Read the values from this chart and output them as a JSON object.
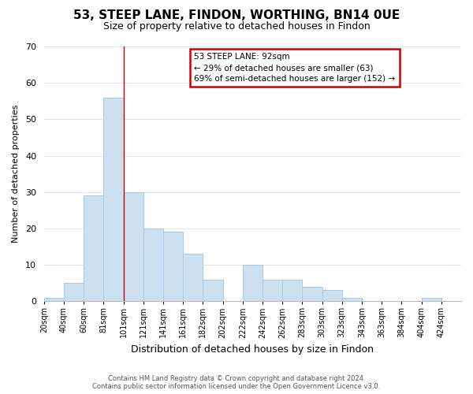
{
  "title": "53, STEEP LANE, FINDON, WORTHING, BN14 0UE",
  "subtitle": "Size of property relative to detached houses in Findon",
  "xlabel": "Distribution of detached houses by size in Findon",
  "ylabel": "Number of detached properties",
  "bar_color": "#cde0f0",
  "bar_edge_color": "#a8c8e8",
  "annotation_box_text": "53 STEEP LANE: 92sqm\n← 29% of detached houses are smaller (63)\n69% of semi-detached houses are larger (152) →",
  "annotation_box_color": "#ffffff",
  "annotation_box_edge_color": "#cc0000",
  "footer_line1": "Contains HM Land Registry data © Crown copyright and database right 2024.",
  "footer_line2": "Contains public sector information licensed under the Open Government Licence v3.0.",
  "tick_labels": [
    "20sqm",
    "40sqm",
    "60sqm",
    "81sqm",
    "101sqm",
    "121sqm",
    "141sqm",
    "161sqm",
    "182sqm",
    "202sqm",
    "222sqm",
    "242sqm",
    "262sqm",
    "283sqm",
    "303sqm",
    "323sqm",
    "343sqm",
    "363sqm",
    "384sqm",
    "404sqm",
    "424sqm"
  ],
  "bar_values": [
    1,
    5,
    29,
    56,
    30,
    20,
    19,
    13,
    6,
    0,
    10,
    6,
    6,
    4,
    3,
    1,
    0,
    0,
    0,
    1
  ],
  "ylim": [
    0,
    70
  ],
  "yticks": [
    0,
    10,
    20,
    30,
    40,
    50,
    60,
    70
  ],
  "red_line_x": 4,
  "background_color": "#ffffff",
  "grid_color": "#d8eaf5"
}
